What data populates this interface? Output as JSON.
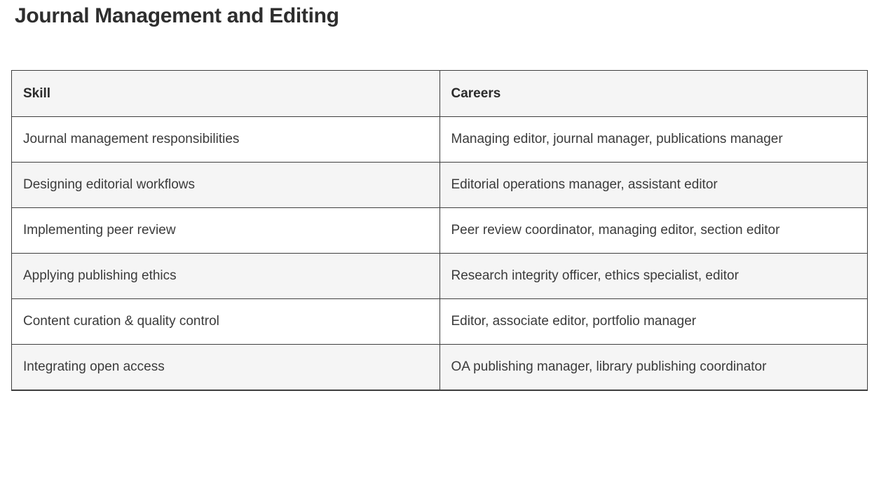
{
  "page": {
    "title": "Journal Management and Editing"
  },
  "table": {
    "headers": [
      "Skill",
      "Careers"
    ],
    "rows": [
      {
        "skill": "Journal management responsibilities",
        "careers": "Managing editor, journal manager, publications manager"
      },
      {
        "skill": "Designing editorial workflows",
        "careers": "Editorial operations manager, assistant editor"
      },
      {
        "skill": "Implementing peer review",
        "careers": "Peer review coordinator, managing editor, section editor"
      },
      {
        "skill": "Applying publishing ethics",
        "careers": "Research integrity officer, ethics specialist, editor"
      },
      {
        "skill": "Content curation & quality control",
        "careers": "Editor, associate editor, portfolio manager"
      },
      {
        "skill": "Integrating open access",
        "careers": "OA publishing manager, library publishing coordinator"
      }
    ]
  },
  "colors": {
    "border": "#3e3e3e",
    "header_background": "#f5f5f5",
    "stripe_background": "#f5f5f5",
    "text": "#3b3b3b",
    "heading_text": "#2b2b2b"
  }
}
